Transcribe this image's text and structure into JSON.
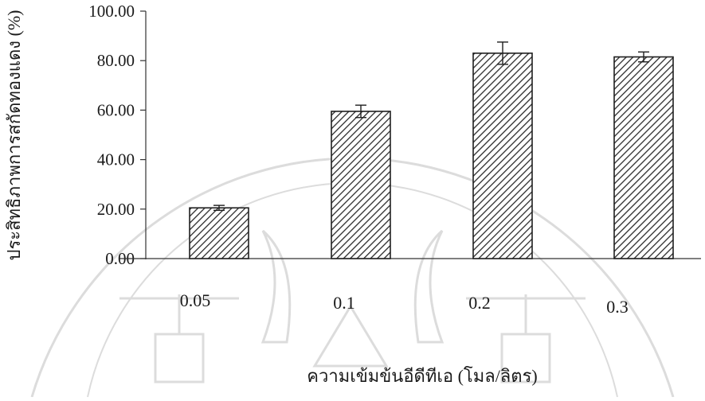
{
  "chart_data": {
    "type": "bar",
    "categories": [
      "0.05",
      "0.1",
      "0.2",
      "0.3"
    ],
    "values": [
      20.5,
      59.5,
      83.0,
      81.5
    ],
    "errors": [
      1.0,
      2.5,
      4.5,
      2.0
    ],
    "xlabel": "ความเข้มข้นอีดีทีเอ (โมล/ลิตร)",
    "ylabel": "ประสิทธิภาพการสกัดทองแดง (%)",
    "ylim": [
      0,
      100
    ],
    "yticks": [
      "0.00",
      "20.00",
      "40.00",
      "60.00",
      "80.00",
      "100.00"
    ],
    "grid": false,
    "bar_fill": "diagonal-hatch",
    "colors": {
      "bar_fill": "#ffffff",
      "hatch": "#2b2b2b",
      "axis": "#333333",
      "text": "#1a1a1a",
      "watermark": "#d9d9d9"
    }
  }
}
